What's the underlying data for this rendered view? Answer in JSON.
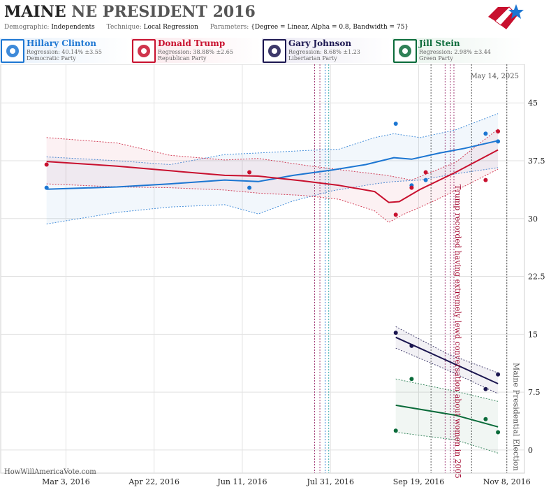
{
  "header": {
    "title_state": "MAINE",
    "title_rest": "NE PRESIDENT 2016",
    "demographic_key": "Demographic:",
    "demographic": "Independents",
    "technique_key": "Technique:",
    "technique": "Local Regression",
    "parameters_key": "Parameters:",
    "parameters": "{Degree = Linear, Alpha = 0.8, Bandwidth = 75}"
  },
  "candidates": [
    {
      "name": "Hillary Clinton",
      "regression": "Regression: 40.14% ±3.55",
      "party": "Democratic Party",
      "color": "#1c76d2",
      "icon": "donkey-icon"
    },
    {
      "name": "Donald Trump",
      "regression": "Regression: 38.88% ±2.65",
      "party": "Republican Party",
      "color": "#c8102e",
      "icon": "elephant-icon"
    },
    {
      "name": "Gary Johnson",
      "regression": "Regression: 8.68% ±1.23",
      "party": "Libertarian Party",
      "color": "#1b1650",
      "icon": "statue-of-liberty-icon"
    },
    {
      "name": "Jill Stein",
      "regression": "Regression: 2.98% ±3.44",
      "party": "Green Party",
      "color": "#0a6b3a",
      "icon": "leaf-icon"
    }
  ],
  "watermark": "HowWillAmericaVote.com",
  "date_stamp": "May 14, 2025",
  "chart_data": {
    "type": "line",
    "x_axis": {
      "type": "date",
      "ticks": [
        "Mar 3, 2016",
        "Apr 22, 2016",
        "Jun 11, 2016",
        "Jul 31, 2016",
        "Sep 19, 2016",
        "Nov 8, 2016"
      ]
    },
    "y_axis": {
      "ticks": [
        "45",
        "37.5",
        "30",
        "22.5",
        "15",
        "7.5",
        "0"
      ],
      "ylim": [
        -3,
        50
      ]
    },
    "grid": true,
    "annotations": [
      {
        "text": "Trump recorded having extremely lewd conversation about women in 2005",
        "date": "2016-10-07",
        "color": "#a0002a"
      },
      {
        "text": "Maine Presidential Election",
        "date": "2016-11-08",
        "color": "#555555"
      }
    ],
    "event_lines": [
      {
        "date": "2016-07-22",
        "color": "#9b2c6b"
      },
      {
        "date": "2016-07-25",
        "color": "#9b2c6b"
      },
      {
        "date": "2016-07-28",
        "color": "#1c76d2"
      },
      {
        "date": "2016-07-30",
        "color": "#2aa7a7"
      },
      {
        "date": "2016-09-26",
        "color": "#444444"
      },
      {
        "date": "2016-10-04",
        "color": "#9b2c6b"
      },
      {
        "date": "2016-10-07",
        "color": "#9b2c6b"
      },
      {
        "date": "2016-10-09",
        "color": "#9b2c6b"
      },
      {
        "date": "2016-10-19",
        "color": "#444444"
      },
      {
        "date": "2016-11-08",
        "color": "#444444"
      }
    ],
    "series": [
      {
        "name": "Hillary Clinton",
        "color": "#1c76d2",
        "points": [
          {
            "x": "2016-02-21",
            "y": 34.0
          },
          {
            "x": "2016-06-15",
            "y": 34.0
          },
          {
            "x": "2016-09-06",
            "y": 42.3
          },
          {
            "x": "2016-09-15",
            "y": 34.3
          },
          {
            "x": "2016-09-23",
            "y": 35.0
          },
          {
            "x": "2016-10-27",
            "y": 41.0
          },
          {
            "x": "2016-11-03",
            "y": 40.0
          }
        ],
        "trend": [
          {
            "x": "2016-02-21",
            "y": 33.8
          },
          {
            "x": "2016-04-01",
            "y": 34.1
          },
          {
            "x": "2016-05-01",
            "y": 34.5
          },
          {
            "x": "2016-06-01",
            "y": 35.0
          },
          {
            "x": "2016-06-20",
            "y": 34.8
          },
          {
            "x": "2016-07-10",
            "y": 35.6
          },
          {
            "x": "2016-08-01",
            "y": 36.3
          },
          {
            "x": "2016-08-20",
            "y": 37.0
          },
          {
            "x": "2016-09-05",
            "y": 37.9
          },
          {
            "x": "2016-09-15",
            "y": 37.7
          },
          {
            "x": "2016-10-01",
            "y": 38.5
          },
          {
            "x": "2016-10-15",
            "y": 39.1
          },
          {
            "x": "2016-11-03",
            "y": 40.1
          }
        ],
        "band_upper": [
          {
            "x": "2016-02-21",
            "y": 38.0
          },
          {
            "x": "2016-04-01",
            "y": 37.5
          },
          {
            "x": "2016-05-01",
            "y": 37.0
          },
          {
            "x": "2016-06-01",
            "y": 38.3
          },
          {
            "x": "2016-06-20",
            "y": 38.5
          },
          {
            "x": "2016-07-15",
            "y": 38.8
          },
          {
            "x": "2016-08-05",
            "y": 39.0
          },
          {
            "x": "2016-08-25",
            "y": 40.5
          },
          {
            "x": "2016-09-05",
            "y": 41.0
          },
          {
            "x": "2016-09-20",
            "y": 40.5
          },
          {
            "x": "2016-10-10",
            "y": 41.5
          },
          {
            "x": "2016-11-03",
            "y": 43.6
          }
        ],
        "band_lower": [
          {
            "x": "2016-02-21",
            "y": 29.3
          },
          {
            "x": "2016-04-01",
            "y": 30.8
          },
          {
            "x": "2016-05-01",
            "y": 31.5
          },
          {
            "x": "2016-06-01",
            "y": 31.8
          },
          {
            "x": "2016-06-20",
            "y": 30.6
          },
          {
            "x": "2016-07-10",
            "y": 32.3
          },
          {
            "x": "2016-08-01",
            "y": 33.6
          },
          {
            "x": "2016-08-25",
            "y": 34.5
          },
          {
            "x": "2016-09-05",
            "y": 34.8
          },
          {
            "x": "2016-09-20",
            "y": 35.0
          },
          {
            "x": "2016-10-10",
            "y": 35.8
          },
          {
            "x": "2016-11-03",
            "y": 36.6
          }
        ]
      },
      {
        "name": "Donald Trump",
        "color": "#c8102e",
        "points": [
          {
            "x": "2016-02-21",
            "y": 37.0
          },
          {
            "x": "2016-06-15",
            "y": 36.0
          },
          {
            "x": "2016-09-06",
            "y": 30.5
          },
          {
            "x": "2016-09-15",
            "y": 34.0
          },
          {
            "x": "2016-09-23",
            "y": 36.0
          },
          {
            "x": "2016-10-27",
            "y": 35.0
          },
          {
            "x": "2016-11-03",
            "y": 41.3
          }
        ],
        "trend": [
          {
            "x": "2016-02-21",
            "y": 37.4
          },
          {
            "x": "2016-04-01",
            "y": 36.8
          },
          {
            "x": "2016-05-01",
            "y": 36.2
          },
          {
            "x": "2016-06-01",
            "y": 35.6
          },
          {
            "x": "2016-06-20",
            "y": 35.5
          },
          {
            "x": "2016-07-15",
            "y": 34.9
          },
          {
            "x": "2016-08-05",
            "y": 34.3
          },
          {
            "x": "2016-08-25",
            "y": 33.5
          },
          {
            "x": "2016-09-02",
            "y": 32.1
          },
          {
            "x": "2016-09-08",
            "y": 32.2
          },
          {
            "x": "2016-09-20",
            "y": 33.8
          },
          {
            "x": "2016-10-10",
            "y": 36.0
          },
          {
            "x": "2016-11-03",
            "y": 38.9
          }
        ],
        "band_upper": [
          {
            "x": "2016-02-21",
            "y": 40.5
          },
          {
            "x": "2016-04-01",
            "y": 39.8
          },
          {
            "x": "2016-05-01",
            "y": 38.2
          },
          {
            "x": "2016-06-01",
            "y": 37.6
          },
          {
            "x": "2016-06-20",
            "y": 37.8
          },
          {
            "x": "2016-07-20",
            "y": 36.8
          },
          {
            "x": "2016-08-10",
            "y": 36.2
          },
          {
            "x": "2016-09-01",
            "y": 35.6
          },
          {
            "x": "2016-09-15",
            "y": 35.0
          },
          {
            "x": "2016-10-10",
            "y": 37.3
          },
          {
            "x": "2016-11-03",
            "y": 41.6
          }
        ],
        "band_lower": [
          {
            "x": "2016-02-21",
            "y": 34.5
          },
          {
            "x": "2016-04-01",
            "y": 34.1
          },
          {
            "x": "2016-05-01",
            "y": 34.0
          },
          {
            "x": "2016-06-01",
            "y": 33.7
          },
          {
            "x": "2016-06-20",
            "y": 33.3
          },
          {
            "x": "2016-07-15",
            "y": 33.0
          },
          {
            "x": "2016-08-05",
            "y": 32.5
          },
          {
            "x": "2016-08-25",
            "y": 31.0
          },
          {
            "x": "2016-09-02",
            "y": 29.5
          },
          {
            "x": "2016-09-10",
            "y": 30.5
          },
          {
            "x": "2016-09-25",
            "y": 32.0
          },
          {
            "x": "2016-10-15",
            "y": 34.2
          },
          {
            "x": "2016-11-03",
            "y": 36.4
          }
        ]
      },
      {
        "name": "Gary Johnson",
        "color": "#1b1650",
        "points": [
          {
            "x": "2016-09-06",
            "y": 15.2
          },
          {
            "x": "2016-09-15",
            "y": 13.5
          },
          {
            "x": "2016-10-27",
            "y": 7.9
          },
          {
            "x": "2016-11-03",
            "y": 9.8
          }
        ],
        "trend": [
          {
            "x": "2016-09-06",
            "y": 14.6
          },
          {
            "x": "2016-11-03",
            "y": 8.6
          }
        ],
        "band_upper": [
          {
            "x": "2016-09-06",
            "y": 16.0
          },
          {
            "x": "2016-10-05",
            "y": 12.5
          },
          {
            "x": "2016-11-03",
            "y": 10.0
          }
        ],
        "band_lower": [
          {
            "x": "2016-09-06",
            "y": 13.2
          },
          {
            "x": "2016-10-05",
            "y": 10.4
          },
          {
            "x": "2016-11-03",
            "y": 7.3
          }
        ]
      },
      {
        "name": "Jill Stein",
        "color": "#0a6b3a",
        "points": [
          {
            "x": "2016-09-06",
            "y": 2.5
          },
          {
            "x": "2016-09-15",
            "y": 9.2
          },
          {
            "x": "2016-10-27",
            "y": 4.0
          },
          {
            "x": "2016-11-03",
            "y": 2.3
          }
        ],
        "trend": [
          {
            "x": "2016-09-06",
            "y": 5.8
          },
          {
            "x": "2016-10-10",
            "y": 4.5
          },
          {
            "x": "2016-11-03",
            "y": 3.0
          }
        ],
        "band_upper": [
          {
            "x": "2016-09-06",
            "y": 9.2
          },
          {
            "x": "2016-10-10",
            "y": 7.6
          },
          {
            "x": "2016-11-03",
            "y": 6.3
          }
        ],
        "band_lower": [
          {
            "x": "2016-09-06",
            "y": 2.3
          },
          {
            "x": "2016-10-10",
            "y": 1.3
          },
          {
            "x": "2016-11-03",
            "y": -0.4
          }
        ]
      }
    ]
  }
}
